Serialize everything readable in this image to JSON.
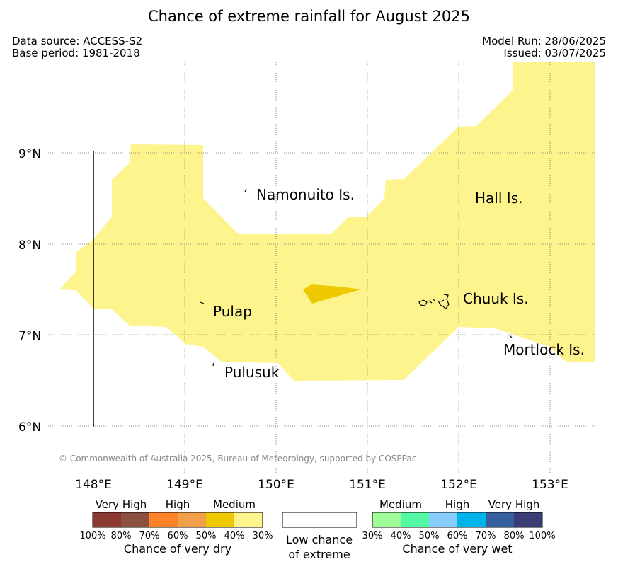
{
  "title": "Chance of extreme rainfall for August 2025",
  "meta": {
    "data_source": "Data source: ACCESS-S2",
    "base_period": "Base period: 1981-2018",
    "model_run": "Model Run: 28/06/2025",
    "issued": "Issued: 03/07/2025"
  },
  "map": {
    "lat_labels": [
      "9°N",
      "8°N",
      "7°N",
      "6°N"
    ],
    "lon_labels": [
      "148°E",
      "149°E",
      "150°E",
      "151°E",
      "152°E",
      "153°E"
    ],
    "places": {
      "namonuito": "Namonuito Is.",
      "hall": "Hall Is.",
      "pulap": "Pulap",
      "chuuk": "Chuuk Is.",
      "pulusuk": "Pulusuk",
      "mortlock": "Mortlock Is."
    },
    "credit": "© Commonwealth of Australia 2025, Bureau of Meteorology, supported by COSPPac",
    "colors": {
      "wet_medium_fill": "#fdf48e",
      "wet_high_patch": "#eec902"
    }
  },
  "legend": {
    "dry": {
      "levels": [
        "Very High",
        "High",
        "Medium"
      ],
      "ticks": [
        "100%",
        "80%",
        "70%",
        "60%",
        "50%",
        "40%",
        "30%"
      ],
      "colors": [
        "#8b3a32",
        "#8c5040",
        "#fd822a",
        "#f0a04b",
        "#eec902",
        "#fdf48e"
      ],
      "caption": "Chance of very dry"
    },
    "low": {
      "caption_line1": "Low chance",
      "caption_line2": "of extreme"
    },
    "wet": {
      "levels": [
        "Medium",
        "High",
        "Very High"
      ],
      "ticks": [
        "30%",
        "40%",
        "50%",
        "60%",
        "70%",
        "80%",
        "100%"
      ],
      "colors": [
        "#9ffc98",
        "#52f8a3",
        "#86cdfb",
        "#00b4ea",
        "#365f9e",
        "#3b3b76"
      ],
      "caption": "Chance of very wet"
    }
  }
}
